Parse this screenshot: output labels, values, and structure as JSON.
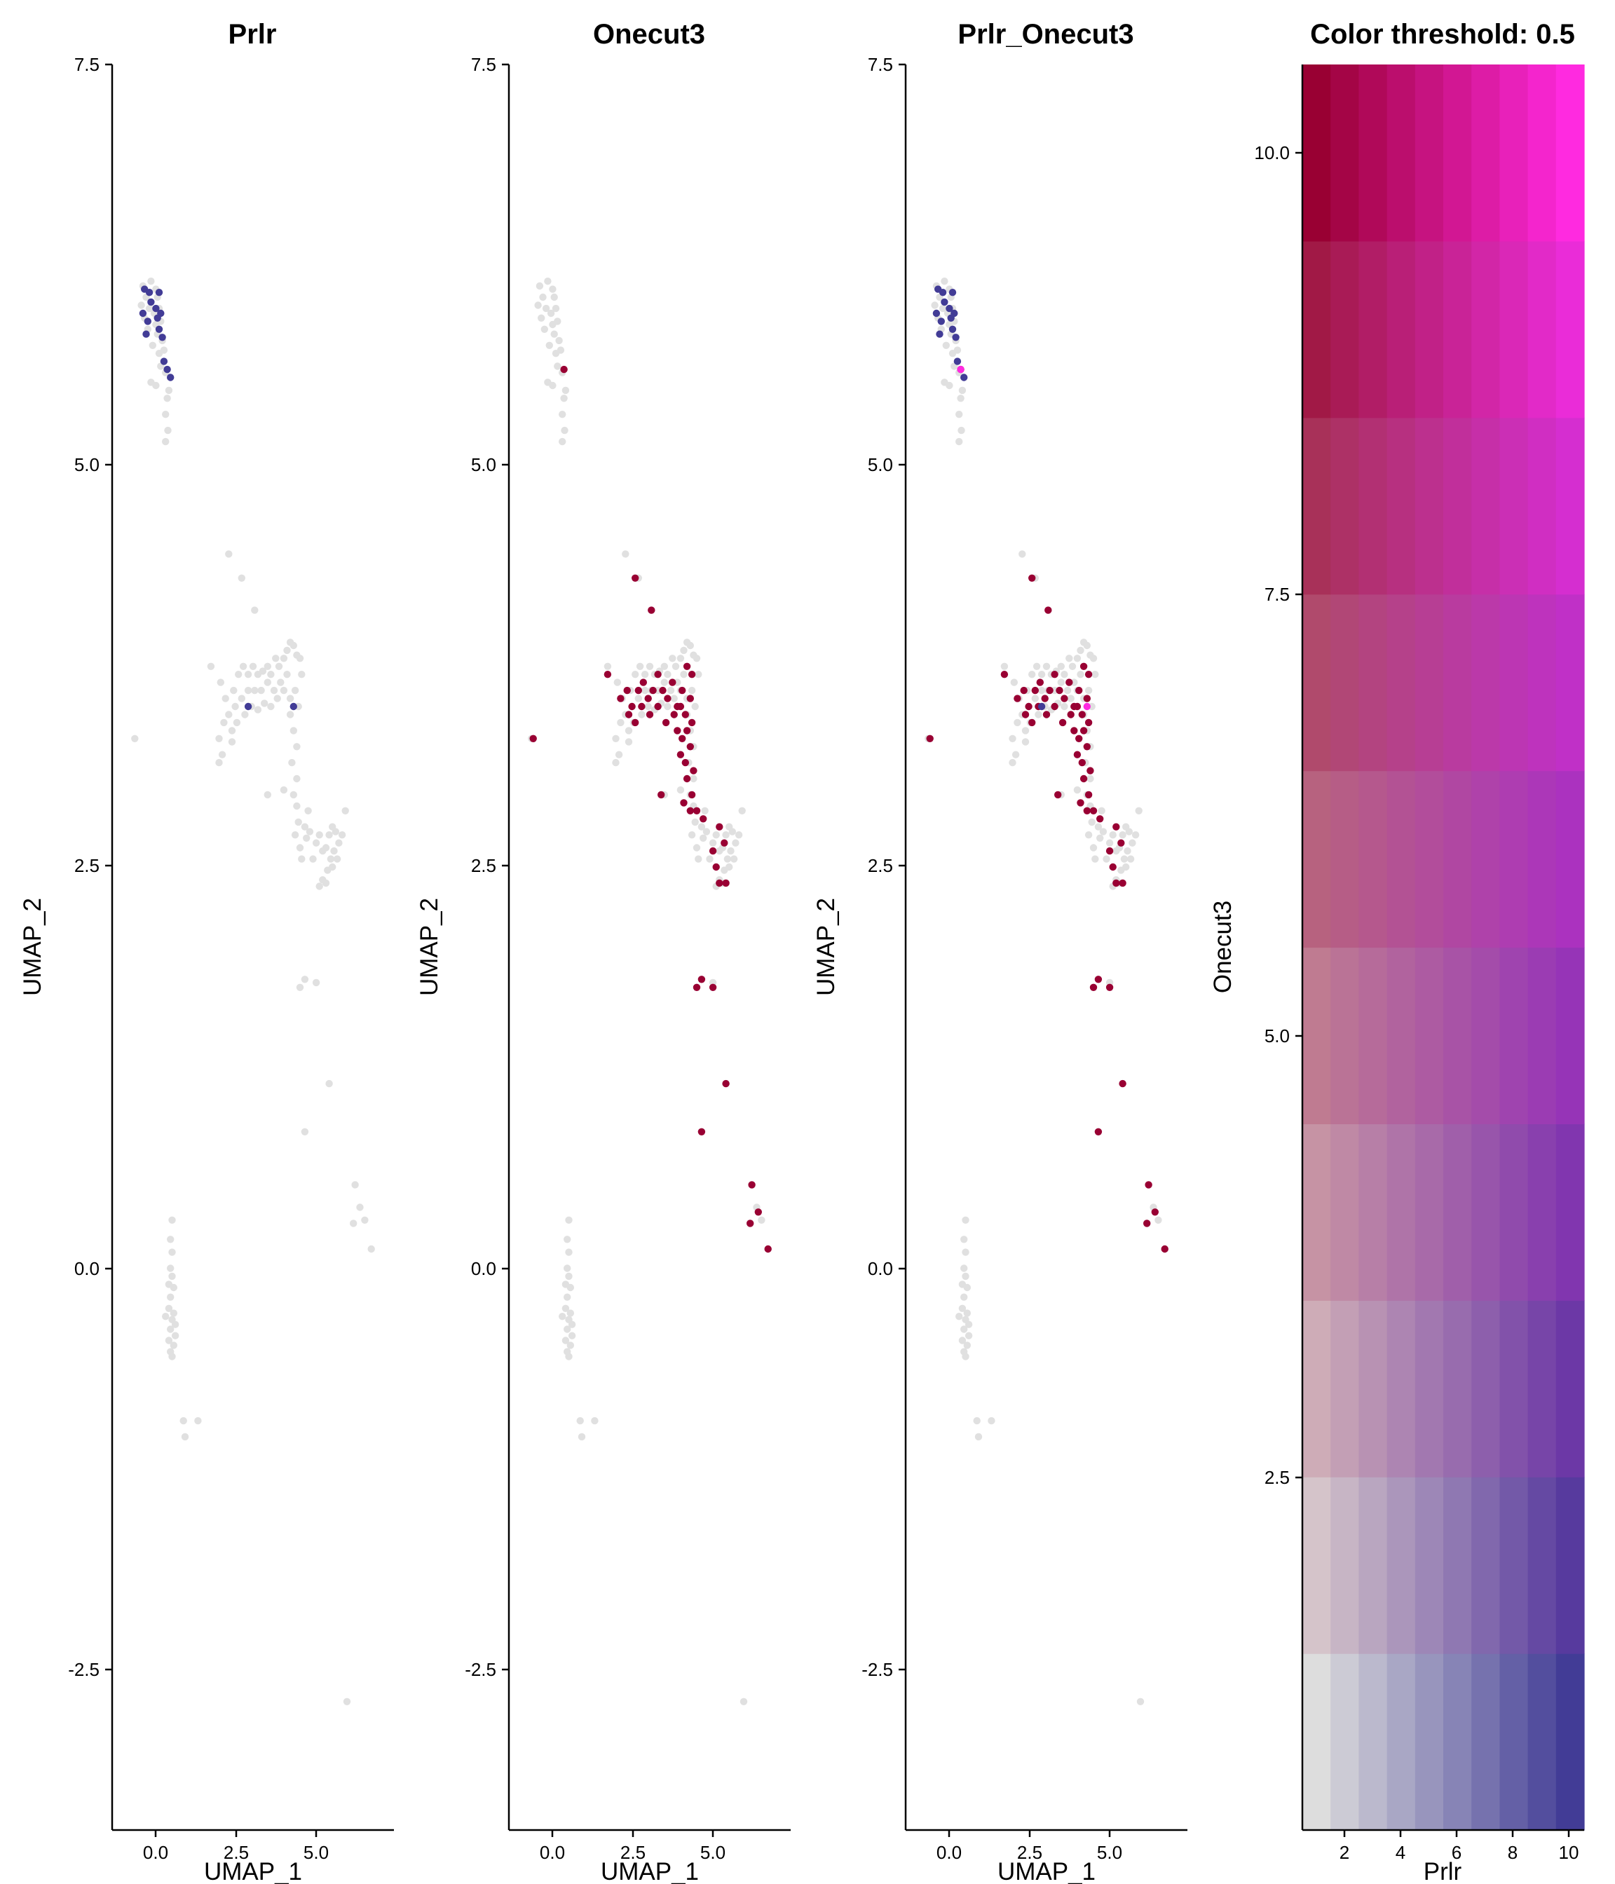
{
  "chart_data": [
    {
      "type": "scatter",
      "title": "Prlr",
      "xlabel": "UMAP_1",
      "ylabel": "UMAP_2",
      "xlim": [
        -1.3,
        7.4
      ],
      "ylim": [
        -3.5,
        7.5
      ],
      "xticks": [
        "0.0",
        "2.5",
        "5.0"
      ],
      "yticks": [
        "-2.5",
        "0.0",
        "2.5",
        "5.0",
        "7.5"
      ],
      "colors": {
        "low": "#e0e0e0",
        "high": "#423c96"
      },
      "grid": false,
      "points_high": [
        [
          -0.3,
          6.1
        ],
        [
          -0.15,
          6.08
        ],
        [
          0.15,
          6.08
        ],
        [
          -0.1,
          6.02
        ],
        [
          0.05,
          5.98
        ],
        [
          -0.35,
          5.95
        ],
        [
          -0.2,
          5.9
        ],
        [
          0.1,
          5.92
        ],
        [
          0.2,
          5.95
        ],
        [
          -0.25,
          5.82
        ],
        [
          0.15,
          5.85
        ],
        [
          0.25,
          5.8
        ],
        [
          0.3,
          5.65
        ],
        [
          0.4,
          5.6
        ],
        [
          0.5,
          5.55
        ],
        [
          2.9,
          3.5
        ],
        [
          4.3,
          3.5
        ]
      ]
    },
    {
      "type": "scatter",
      "title": "Onecut3",
      "xlabel": "UMAP_1",
      "ylabel": "UMAP_2",
      "xlim": [
        -1.3,
        7.4
      ],
      "ylim": [
        -3.5,
        7.5
      ],
      "xticks": [
        "0.0",
        "2.5",
        "5.0"
      ],
      "yticks": [
        "-2.5",
        "0.0",
        "2.5",
        "5.0",
        "7.5"
      ],
      "colors": {
        "low": "#e0e0e0",
        "high": "#990033"
      },
      "grid": false,
      "points_high": [
        [
          0.4,
          5.6
        ],
        [
          2.6,
          4.3
        ],
        [
          3.1,
          4.1
        ],
        [
          1.75,
          3.7
        ],
        [
          -0.55,
          3.3
        ],
        [
          2.15,
          3.55
        ],
        [
          2.35,
          3.6
        ],
        [
          2.5,
          3.5
        ],
        [
          2.7,
          3.6
        ],
        [
          2.85,
          3.65
        ],
        [
          3.0,
          3.55
        ],
        [
          3.15,
          3.6
        ],
        [
          3.3,
          3.7
        ],
        [
          3.45,
          3.6
        ],
        [
          3.6,
          3.55
        ],
        [
          3.75,
          3.65
        ],
        [
          3.9,
          3.5
        ],
        [
          4.05,
          3.6
        ],
        [
          4.2,
          3.75
        ],
        [
          4.35,
          3.7
        ],
        [
          2.4,
          3.45
        ],
        [
          2.6,
          3.4
        ],
        [
          2.8,
          3.5
        ],
        [
          3.05,
          3.45
        ],
        [
          3.3,
          3.5
        ],
        [
          3.55,
          3.4
        ],
        [
          3.8,
          3.45
        ],
        [
          4.0,
          3.5
        ],
        [
          4.15,
          3.45
        ],
        [
          4.3,
          3.55
        ],
        [
          3.9,
          3.35
        ],
        [
          4.05,
          3.3
        ],
        [
          4.2,
          3.35
        ],
        [
          4.35,
          3.4
        ],
        [
          4.0,
          3.2
        ],
        [
          4.15,
          3.15
        ],
        [
          4.3,
          3.25
        ],
        [
          4.4,
          3.1
        ],
        [
          4.2,
          3.05
        ],
        [
          4.35,
          2.95
        ],
        [
          4.5,
          2.85
        ],
        [
          4.3,
          2.85
        ],
        [
          3.4,
          2.95
        ],
        [
          4.1,
          2.9
        ],
        [
          4.7,
          2.8
        ],
        [
          5.2,
          2.75
        ],
        [
          5.35,
          2.65
        ],
        [
          5.0,
          2.6
        ],
        [
          5.1,
          2.5
        ],
        [
          5.2,
          2.4
        ],
        [
          5.4,
          2.4
        ],
        [
          4.65,
          1.8
        ],
        [
          4.5,
          1.75
        ],
        [
          5.0,
          1.75
        ],
        [
          5.4,
          1.15
        ],
        [
          4.65,
          0.85
        ],
        [
          6.2,
          0.52
        ],
        [
          6.15,
          0.28
        ],
        [
          6.4,
          0.35
        ],
        [
          6.7,
          0.12
        ]
      ]
    },
    {
      "type": "scatter",
      "title": "Prlr_Onecut3",
      "xlabel": "UMAP_1",
      "ylabel": "UMAP_2",
      "xlim": [
        -1.3,
        7.4
      ],
      "ylim": [
        -3.5,
        7.5
      ],
      "xticks": [
        "0.0",
        "2.5",
        "5.0"
      ],
      "yticks": [
        "-2.5",
        "0.0",
        "2.5",
        "5.0",
        "7.5"
      ],
      "colors": {
        "low": "#e0e0e0",
        "prlr": "#423c96",
        "onecut3": "#990033",
        "both": "#ff2ae0"
      },
      "grid": false,
      "points_high": [
        [
          -0.3,
          6.1
        ],
        [
          -0.15,
          6.08
        ],
        [
          0.15,
          6.08
        ],
        [
          -0.1,
          6.02
        ],
        [
          0.05,
          5.98
        ],
        [
          -0.35,
          5.95
        ],
        [
          -0.2,
          5.9
        ],
        [
          0.1,
          5.92
        ],
        [
          0.2,
          5.95
        ],
        [
          -0.25,
          5.82
        ],
        [
          0.15,
          5.85
        ],
        [
          0.25,
          5.8
        ],
        [
          0.3,
          5.65
        ],
        [
          0.5,
          5.55
        ],
        [
          2.9,
          3.5
        ]
      ],
      "points_both": [
        [
          0.4,
          5.6
        ],
        [
          4.3,
          3.5
        ]
      ]
    }
  ],
  "legend": {
    "title": "Color threshold: 0.5",
    "xlabel": "Prlr",
    "ylabel": "Onecut3",
    "xticks": [
      2,
      4,
      6,
      8,
      10
    ],
    "yticks": [
      "2.5",
      "5.0",
      "7.5",
      "10.0"
    ],
    "xlim": [
      0.5,
      10.5
    ],
    "ylim": [
      0.5,
      10.5
    ],
    "grid_cols": 10,
    "grid_rows": 10,
    "corner_colors": {
      "bottom_left": "#dddddd",
      "bottom_right": "#423c96",
      "top_left": "#990033",
      "top_right": "#ff2ae0"
    }
  }
}
